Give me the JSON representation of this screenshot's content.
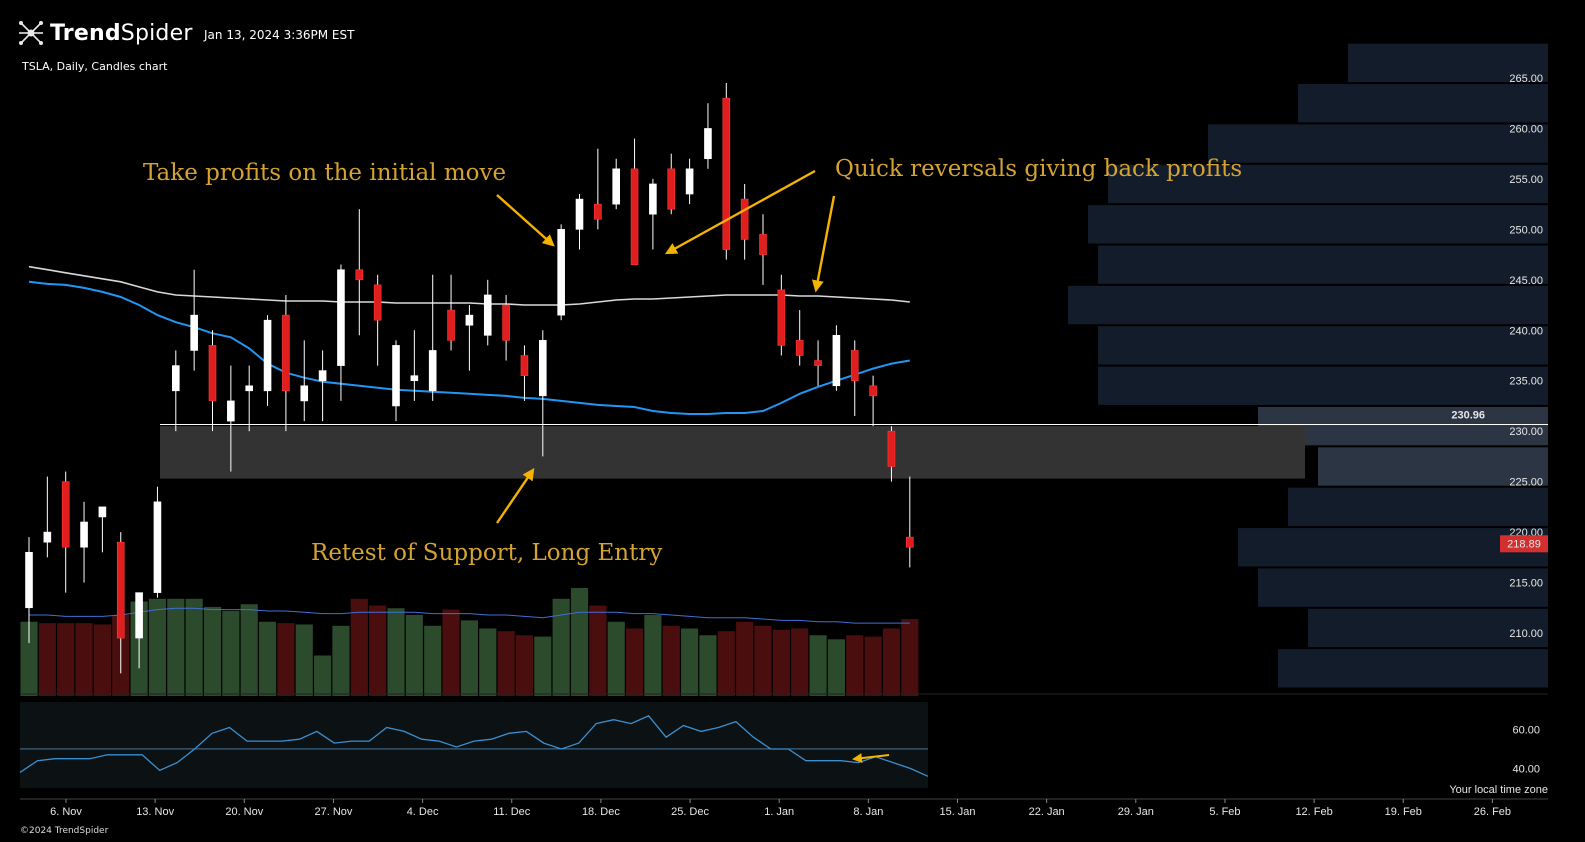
{
  "header": {
    "logo_bold": "Trend",
    "logo_light": "Spider",
    "timestamp": "Jan 13, 2024 3:36PM EST",
    "chart_title": "TSLA, Daily, Candles chart",
    "copyright": "©2024 TrendSpider",
    "timezone_label": "Your local time zone"
  },
  "colors": {
    "background": "#000000",
    "up_candle": "#ffffff",
    "down_candle": "#e01e1e",
    "ma_fast": "#2196f3",
    "ma_slow": "#d9d9d9",
    "support_zone": "#333333",
    "volume_up": "#2c4a2c",
    "volume_down": "#4a0e0e",
    "volume_profile": "#131c2b",
    "annotation": "#d4a331",
    "arrow": "#f5b301",
    "price_tag": "#d32f2f"
  },
  "chart_data": {
    "type": "candlestick",
    "symbol": "TSLA",
    "interval": "Daily",
    "ylim": [
      205,
      268
    ],
    "y_ticks": [
      "210.00",
      "215.00",
      "220.00",
      "225.00",
      "230.00",
      "235.00",
      "240.00",
      "245.00",
      "250.00",
      "255.00",
      "260.00",
      "265.00"
    ],
    "x_ticks": [
      "6. Nov",
      "13. Nov",
      "20. Nov",
      "27. Nov",
      "4. Dec",
      "11. Dec",
      "18. Dec",
      "25. Dec",
      "1. Jan",
      "8. Jan",
      "15. Jan",
      "22. Jan",
      "29. Jan",
      "5. Feb",
      "12. Feb",
      "19. Feb",
      "26. Feb"
    ],
    "candles": [
      {
        "o": 212.5,
        "h": 219.5,
        "l": 209.0,
        "c": 218.0
      },
      {
        "o": 219.0,
        "h": 225.5,
        "l": 217.5,
        "c": 220.0
      },
      {
        "o": 225.0,
        "h": 226.0,
        "l": 214.0,
        "c": 218.5
      },
      {
        "o": 218.5,
        "h": 223.0,
        "l": 215.0,
        "c": 221.0
      },
      {
        "o": 221.5,
        "h": 222.5,
        "l": 218.0,
        "c": 222.5
      },
      {
        "o": 219.0,
        "h": 220.0,
        "l": 206.0,
        "c": 209.5
      },
      {
        "o": 209.5,
        "h": 214.0,
        "l": 206.5,
        "c": 214.0
      },
      {
        "o": 214.0,
        "h": 224.5,
        "l": 213.5,
        "c": 223.0
      },
      {
        "o": 234.0,
        "h": 238.0,
        "l": 230.0,
        "c": 236.5
      },
      {
        "o": 238.0,
        "h": 246.0,
        "l": 236.0,
        "c": 241.5
      },
      {
        "o": 238.5,
        "h": 240.0,
        "l": 230.0,
        "c": 233.0
      },
      {
        "o": 231.0,
        "h": 236.5,
        "l": 226.0,
        "c": 233.0
      },
      {
        "o": 234.0,
        "h": 236.5,
        "l": 230.0,
        "c": 234.5
      },
      {
        "o": 234.0,
        "h": 241.5,
        "l": 232.5,
        "c": 241.0
      },
      {
        "o": 241.5,
        "h": 243.5,
        "l": 230.0,
        "c": 234.0
      },
      {
        "o": 233.0,
        "h": 239.0,
        "l": 231.0,
        "c": 234.5
      },
      {
        "o": 235.0,
        "h": 238.0,
        "l": 231.0,
        "c": 236.0
      },
      {
        "o": 236.5,
        "h": 246.5,
        "l": 233.0,
        "c": 246.0
      },
      {
        "o": 246.0,
        "h": 252.0,
        "l": 239.5,
        "c": 245.0
      },
      {
        "o": 244.5,
        "h": 245.5,
        "l": 236.5,
        "c": 241.0
      },
      {
        "o": 232.5,
        "h": 239.0,
        "l": 231.0,
        "c": 238.5
      },
      {
        "o": 235.0,
        "h": 240.0,
        "l": 233.0,
        "c": 235.5
      },
      {
        "o": 234.0,
        "h": 245.5,
        "l": 233.0,
        "c": 238.0
      },
      {
        "o": 242.0,
        "h": 245.5,
        "l": 238.0,
        "c": 239.0
      },
      {
        "o": 240.5,
        "h": 242.5,
        "l": 236.0,
        "c": 241.5
      },
      {
        "o": 239.5,
        "h": 245.0,
        "l": 238.5,
        "c": 243.5
      },
      {
        "o": 242.5,
        "h": 243.5,
        "l": 237.0,
        "c": 239.0
      },
      {
        "o": 237.5,
        "h": 238.5,
        "l": 233.0,
        "c": 235.5
      },
      {
        "o": 233.5,
        "h": 240.0,
        "l": 227.5,
        "c": 239.0
      },
      {
        "o": 241.5,
        "h": 250.5,
        "l": 241.0,
        "c": 250.0
      },
      {
        "o": 250.0,
        "h": 253.5,
        "l": 248.0,
        "c": 253.0
      },
      {
        "o": 252.5,
        "h": 258.0,
        "l": 250.0,
        "c": 251.0
      },
      {
        "o": 252.5,
        "h": 257.0,
        "l": 252.0,
        "c": 256.0
      },
      {
        "o": 256.0,
        "h": 259.0,
        "l": 246.5,
        "c": 246.5
      },
      {
        "o": 251.5,
        "h": 255.0,
        "l": 248.0,
        "c": 254.5
      },
      {
        "o": 256.0,
        "h": 257.5,
        "l": 251.5,
        "c": 252.0
      },
      {
        "o": 253.5,
        "h": 257.0,
        "l": 252.5,
        "c": 256.0
      },
      {
        "o": 257.0,
        "h": 262.5,
        "l": 256.0,
        "c": 260.0
      },
      {
        "o": 263.0,
        "h": 264.5,
        "l": 247.0,
        "c": 248.0
      },
      {
        "o": 253.0,
        "h": 254.5,
        "l": 247.0,
        "c": 249.0
      },
      {
        "o": 249.5,
        "h": 251.5,
        "l": 244.5,
        "c": 247.5
      },
      {
        "o": 244.0,
        "h": 245.5,
        "l": 237.5,
        "c": 238.5
      },
      {
        "o": 239.0,
        "h": 242.0,
        "l": 236.5,
        "c": 237.5
      },
      {
        "o": 237.0,
        "h": 239.0,
        "l": 234.5,
        "c": 236.5
      },
      {
        "o": 234.5,
        "h": 240.5,
        "l": 234.0,
        "c": 239.5
      },
      {
        "o": 238.0,
        "h": 239.0,
        "l": 231.5,
        "c": 235.0
      },
      {
        "o": 234.5,
        "h": 235.5,
        "l": 230.5,
        "c": 233.5
      },
      {
        "o": 230.0,
        "h": 230.5,
        "l": 225.0,
        "c": 226.5
      },
      {
        "o": 219.5,
        "h": 225.5,
        "l": 216.5,
        "c": 218.5
      }
    ],
    "ma_fast": [
      244.8,
      244.6,
      244.5,
      244.2,
      243.8,
      243.3,
      242.5,
      241.5,
      240.8,
      240.3,
      239.7,
      239.3,
      238.2,
      236.7,
      235.8,
      235.3,
      234.9,
      234.7,
      234.5,
      234.3,
      234.1,
      234.0,
      233.9,
      233.8,
      233.7,
      233.6,
      233.5,
      233.3,
      233.2,
      233.0,
      232.8,
      232.6,
      232.5,
      232.4,
      232.0,
      231.8,
      231.7,
      231.7,
      231.8,
      231.8,
      232.0,
      232.8,
      233.7,
      234.4,
      235.0,
      235.6,
      236.2,
      236.7,
      237.0
    ],
    "ma_slow": [
      246.3,
      246.0,
      245.7,
      245.4,
      245.1,
      244.8,
      244.3,
      243.8,
      243.5,
      243.4,
      243.3,
      243.2,
      243.1,
      243.0,
      242.9,
      242.9,
      242.9,
      242.8,
      242.8,
      242.8,
      242.7,
      242.7,
      242.7,
      242.7,
      242.7,
      242.6,
      242.6,
      242.5,
      242.5,
      242.5,
      242.6,
      242.8,
      243.0,
      243.1,
      243.1,
      243.2,
      243.3,
      243.4,
      243.5,
      243.5,
      243.5,
      243.5,
      243.4,
      243.4,
      243.3,
      243.2,
      243.1,
      243.0,
      242.8
    ],
    "volume_up_days": [
      1,
      0,
      0,
      0,
      0,
      0,
      1,
      1,
      1,
      1,
      1,
      1,
      1,
      1,
      0,
      1,
      1,
      1,
      0,
      0,
      1,
      1,
      1,
      0,
      1,
      1,
      0,
      0,
      1,
      1,
      1,
      0,
      1,
      0,
      1,
      0,
      1,
      1,
      0,
      0,
      0,
      0,
      0,
      1,
      1,
      0,
      0,
      0,
      0
    ],
    "volume": [
      0.55,
      0.54,
      0.54,
      0.54,
      0.53,
      0.6,
      0.7,
      0.72,
      0.72,
      0.72,
      0.66,
      0.63,
      0.68,
      0.55,
      0.54,
      0.53,
      0.3,
      0.52,
      0.72,
      0.67,
      0.65,
      0.6,
      0.52,
      0.64,
      0.56,
      0.5,
      0.48,
      0.45,
      0.44,
      0.72,
      0.8,
      0.67,
      0.55,
      0.5,
      0.6,
      0.52,
      0.5,
      0.45,
      0.48,
      0.55,
      0.52,
      0.49,
      0.5,
      0.45,
      0.42,
      0.45,
      0.44,
      0.5,
      0.57
    ],
    "volume_ma": [
      0.6,
      0.6,
      0.59,
      0.59,
      0.59,
      0.6,
      0.62,
      0.64,
      0.65,
      0.65,
      0.64,
      0.64,
      0.64,
      0.63,
      0.63,
      0.62,
      0.61,
      0.61,
      0.62,
      0.62,
      0.62,
      0.62,
      0.61,
      0.61,
      0.61,
      0.6,
      0.6,
      0.59,
      0.58,
      0.6,
      0.62,
      0.62,
      0.62,
      0.61,
      0.61,
      0.6,
      0.59,
      0.58,
      0.58,
      0.58,
      0.57,
      0.56,
      0.56,
      0.55,
      0.55,
      0.54,
      0.54,
      0.54,
      0.54
    ],
    "volume_profile": [
      {
        "price": 266.5,
        "width": 0.2
      },
      {
        "price": 262.5,
        "width": 0.25
      },
      {
        "price": 258.5,
        "width": 0.34
      },
      {
        "price": 254.5,
        "width": 0.44
      },
      {
        "price": 250.5,
        "width": 0.46
      },
      {
        "price": 246.5,
        "width": 0.45
      },
      {
        "price": 242.5,
        "width": 0.48
      },
      {
        "price": 238.5,
        "width": 0.45
      },
      {
        "price": 234.5,
        "width": 0.45
      },
      {
        "price": 230.5,
        "width": 0.29
      },
      {
        "price": 226.5,
        "width": 0.23
      },
      {
        "price": 222.5,
        "width": 0.26
      },
      {
        "price": 218.5,
        "width": 0.31
      },
      {
        "price": 214.5,
        "width": 0.29
      },
      {
        "price": 210.5,
        "width": 0.24
      },
      {
        "price": 206.5,
        "width": 0.27
      }
    ],
    "support_zone": [
      225.3,
      230.5
    ],
    "support_line": 230.96,
    "support_line_label": "230.96",
    "last_price": 218.89,
    "last_price_label": "218.89",
    "oscillator": {
      "ticks": [
        "60.00",
        "40.00"
      ],
      "ylim": [
        30,
        72
      ],
      "level": 50,
      "values": [
        38,
        44,
        45,
        45,
        45,
        47,
        47,
        47,
        39,
        43,
        50,
        58,
        61,
        54,
        54,
        54,
        55,
        59,
        53,
        54,
        54,
        61,
        59,
        55,
        54,
        51,
        54,
        55,
        58,
        59,
        53,
        50,
        53,
        63,
        65,
        63,
        67,
        56,
        62,
        59,
        61,
        64,
        56,
        50,
        50,
        44,
        44,
        44,
        43,
        46,
        43,
        40,
        36
      ]
    },
    "annotations": [
      "Take profits on the initial move",
      "Quick reversals giving back profits",
      "Retest of Support, Long Entry"
    ]
  }
}
